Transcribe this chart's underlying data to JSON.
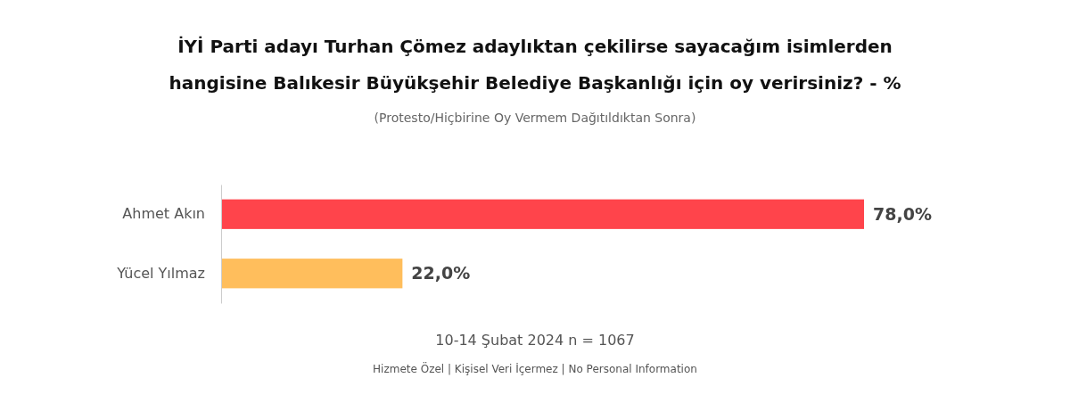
{
  "chart_data": {
    "type": "bar",
    "orientation": "horizontal",
    "title": "İYİ Parti adayı Turhan Çömez adaylıktan çekilirse sayacağım isimlerden hangisine Balıkesir Büyükşehir Belediye Başkanlığı için oy verirsiniz? - %",
    "subtitle": "(Protesto/Hiçbirine Oy Vermem Dağıtıldıktan Sonra)",
    "categories": [
      "Ahmet Akın",
      "Yücel Yılmaz"
    ],
    "values": [
      78.0,
      22.0
    ],
    "colors": [
      "#ff444b",
      "#ffbe5c"
    ],
    "value_labels": [
      "78,0%",
      "22,0%"
    ],
    "annotations": [
      "10-14 Şubat 2024 n = 1067",
      "Hizmete Özel | Kişisel Veri İçermez | No Personal Information"
    ]
  }
}
